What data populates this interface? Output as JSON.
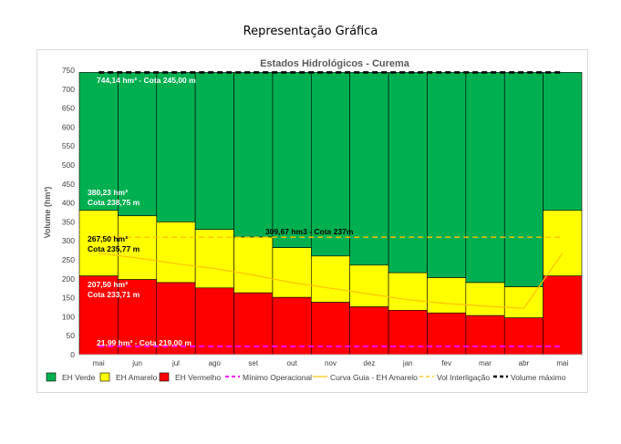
{
  "page": {
    "title": "Representação Gráfica"
  },
  "chart_data": {
    "type": "bar",
    "title": "Estados Hidrológicos - Curema",
    "xlabel": "",
    "ylabel": "Volume (hm³)",
    "ylim": [
      0,
      750
    ],
    "yticks": [
      0,
      50,
      100,
      150,
      200,
      250,
      300,
      350,
      400,
      450,
      500,
      550,
      600,
      650,
      700,
      750
    ],
    "categories": [
      "mai",
      "jun",
      "jul",
      "ago",
      "set",
      "out",
      "nov",
      "dez",
      "jan",
      "fev",
      "mar",
      "abr",
      "mai"
    ],
    "stack_tops": {
      "vermelho": [
        207.5,
        198,
        190,
        176,
        163,
        151,
        138,
        126,
        117,
        110,
        103,
        97,
        207.5
      ],
      "amarelo": [
        380.23,
        366,
        350,
        330,
        310,
        282,
        260,
        236,
        216,
        203,
        190,
        179,
        380.23
      ],
      "verde": [
        744.14,
        744.14,
        744.14,
        744.14,
        744.14,
        744.14,
        744.14,
        744.14,
        744.14,
        744.14,
        744.14,
        744.14,
        744.14
      ]
    },
    "series": [
      {
        "name": "EH Verde",
        "type": "stacked-bar",
        "color": "#00b050"
      },
      {
        "name": "EH Amarelo",
        "type": "stacked-bar",
        "color": "#ffff00"
      },
      {
        "name": "EH Vermelho",
        "type": "stacked-bar",
        "color": "#ff0000"
      },
      {
        "name": "Mínimo Operacional",
        "type": "dashed-line",
        "color": "#ff00ff",
        "values": [
          21.99,
          21.99,
          21.99,
          21.99,
          21.99,
          21.99,
          21.99,
          21.99,
          21.99,
          21.99,
          21.99,
          21.99,
          21.99
        ]
      },
      {
        "name": "Curva Guia - EH Amarelo",
        "type": "line",
        "color": "#ffc000",
        "values": [
          267.5,
          255,
          240,
          227,
          210,
          190,
          175,
          160,
          145,
          135,
          128,
          122,
          267.5
        ]
      },
      {
        "name": "Vol Interligação",
        "type": "dashed-line",
        "color": "#ffc000",
        "values": [
          309.67,
          309.67,
          309.67,
          309.67,
          309.67,
          309.67,
          309.67,
          309.67,
          309.67,
          309.67,
          309.67,
          309.67,
          309.67
        ]
      },
      {
        "name": "Volume máximo",
        "type": "dashed-line",
        "color": "#000000",
        "values": [
          744.14,
          744.14,
          744.14,
          744.14,
          744.14,
          744.14,
          744.14,
          744.14,
          744.14,
          744.14,
          744.14,
          744.14,
          744.14
        ]
      }
    ],
    "annotations": [
      {
        "id": "vmax",
        "lines": [
          "744,14 hm³ - Cota 245,00 m"
        ],
        "color": "#ffffff"
      },
      {
        "id": "amarelo",
        "lines": [
          "380,23 hm³",
          "Cota 238,75 m"
        ],
        "color": "#ffffff"
      },
      {
        "id": "interlig",
        "lines": [
          "309,67 hm3 - Cota 237m"
        ],
        "color": "#000000"
      },
      {
        "id": "guia",
        "lines": [
          "267,50 hm³",
          "Cota 235,77 m"
        ],
        "color": "#000000"
      },
      {
        "id": "vermelho",
        "lines": [
          "207,50 hm³",
          "Cota 233,71 m"
        ],
        "color": "#ffffff"
      },
      {
        "id": "minimo",
        "lines": [
          "21,99 hm³ - Cota 219,00 m"
        ],
        "color": "#ffffff"
      }
    ]
  }
}
